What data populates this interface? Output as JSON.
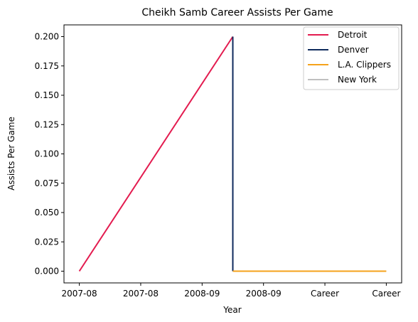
{
  "chart_data": {
    "type": "line",
    "title": "Cheikh Samb Career Assists Per Game",
    "xlabel": "Year",
    "ylabel": "Assists Per Game",
    "x_tick_labels": [
      "2007-08",
      "2007-08",
      "2008-09",
      "2008-09",
      "Career",
      "Career"
    ],
    "ylim": [
      -0.01,
      0.21
    ],
    "yticks": [
      "0.000",
      "0.025",
      "0.050",
      "0.075",
      "0.100",
      "0.125",
      "0.150",
      "0.175",
      "0.200"
    ],
    "ytick_values": [
      0,
      0.025,
      0.05,
      0.075,
      0.1,
      0.125,
      0.15,
      0.175,
      0.2
    ],
    "grid": false,
    "legend_position": "top-right",
    "series": [
      {
        "name": "Detroit",
        "color": "#E31B4F",
        "points": [
          [
            0,
            0.0
          ],
          [
            1.5,
            0.2
          ]
        ]
      },
      {
        "name": "Denver",
        "color": "#0E2A5C",
        "points": [
          [
            1.5,
            0.2
          ],
          [
            1.5,
            0.0
          ]
        ]
      },
      {
        "name": "L.A. Clippers",
        "color": "#F5A21B",
        "points": [
          [
            1.5,
            0.0
          ],
          [
            3.0,
            0.0
          ]
        ]
      },
      {
        "name": "New York",
        "color": "#BFBFBF",
        "points": [
          [
            3.0,
            0.0
          ],
          [
            3.0,
            0.0
          ]
        ]
      }
    ]
  }
}
